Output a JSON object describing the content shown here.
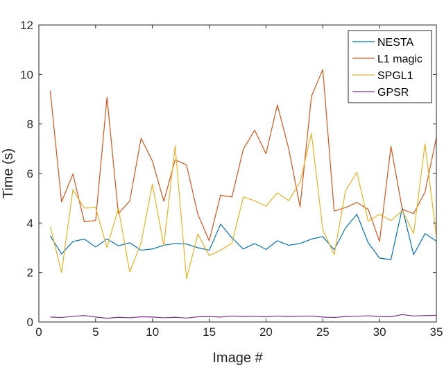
{
  "chart_data": {
    "type": "line",
    "title": "",
    "xlabel": "Image #",
    "ylabel": "Time (s)",
    "xlim": [
      0,
      35
    ],
    "ylim": [
      0,
      12
    ],
    "xticks": [
      0,
      5,
      10,
      15,
      20,
      25,
      30,
      35
    ],
    "yticks": [
      0,
      2,
      4,
      6,
      8,
      10,
      12
    ],
    "grid": false,
    "legend_position": "top-right",
    "x": [
      1,
      2,
      3,
      4,
      5,
      6,
      7,
      8,
      9,
      10,
      11,
      12,
      13,
      14,
      15,
      16,
      17,
      18,
      19,
      20,
      21,
      22,
      23,
      24,
      25,
      26,
      27,
      28,
      29,
      30,
      31,
      32,
      33,
      34,
      35
    ],
    "series": [
      {
        "name": "NESTA",
        "color": "#0072BD",
        "values": [
          3.48,
          2.75,
          3.25,
          3.35,
          3.03,
          3.35,
          3.08,
          3.2,
          2.9,
          2.95,
          3.1,
          3.17,
          3.15,
          3.0,
          2.9,
          3.95,
          3.4,
          2.95,
          3.17,
          2.93,
          3.28,
          3.1,
          3.17,
          3.35,
          3.45,
          2.92,
          3.8,
          4.35,
          3.2,
          2.58,
          2.52,
          4.6,
          2.72,
          3.57,
          3.27
        ]
      },
      {
        "name": "L1 magic",
        "color": "#D95319",
        "values": [
          9.35,
          4.85,
          5.98,
          4.05,
          4.1,
          9.08,
          4.38,
          4.88,
          7.42,
          6.5,
          4.88,
          6.55,
          6.35,
          4.35,
          3.28,
          5.12,
          5.05,
          6.98,
          7.75,
          6.8,
          8.77,
          7.0,
          4.65,
          9.12,
          10.2,
          4.48,
          4.62,
          4.83,
          4.55,
          3.25,
          7.1,
          4.55,
          4.38,
          5.25,
          7.45
        ]
      },
      {
        "name": "SPGL1",
        "color": "#EDB120",
        "values": [
          3.85,
          2.0,
          5.35,
          4.6,
          4.62,
          3.0,
          4.6,
          2.02,
          3.2,
          5.57,
          3.08,
          7.12,
          1.75,
          3.55,
          2.68,
          2.9,
          3.18,
          5.05,
          4.9,
          4.68,
          5.22,
          4.9,
          5.65,
          7.62,
          3.73,
          2.72,
          5.3,
          6.05,
          4.07,
          4.35,
          4.1,
          4.5,
          3.57,
          7.2,
          3.45
        ]
      },
      {
        "name": "GPSR",
        "color": "#7E2F8E",
        "values": [
          0.2,
          0.18,
          0.23,
          0.26,
          0.2,
          0.15,
          0.19,
          0.17,
          0.21,
          0.2,
          0.17,
          0.19,
          0.16,
          0.21,
          0.22,
          0.2,
          0.24,
          0.22,
          0.23,
          0.21,
          0.24,
          0.22,
          0.23,
          0.24,
          0.2,
          0.18,
          0.22,
          0.23,
          0.25,
          0.22,
          0.21,
          0.3,
          0.24,
          0.26,
          0.27
        ]
      }
    ]
  }
}
